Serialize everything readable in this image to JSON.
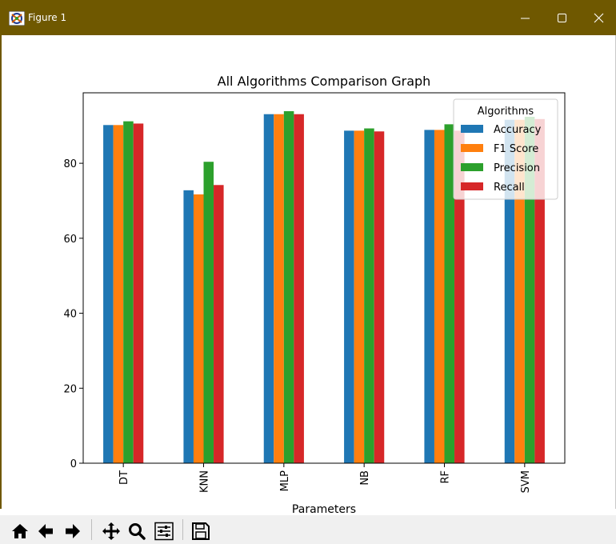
{
  "window": {
    "title": "Figure 1",
    "icons": [
      "app-icon",
      "minimize-icon",
      "maximize-icon",
      "close-icon"
    ]
  },
  "toolbar": {
    "buttons": [
      "home-icon",
      "back-icon",
      "forward-icon",
      "pan-icon",
      "zoom-icon",
      "configure-subplots-icon",
      "save-icon"
    ]
  },
  "chart_data": {
    "type": "bar",
    "title": "All Algorithms Comparison Graph",
    "xlabel": "Parameters",
    "ylabel": "",
    "categories": [
      "DT",
      "KNN",
      "MLP",
      "NB",
      "RF",
      "SVM"
    ],
    "ylim": [
      0,
      98.8
    ],
    "yticks": [
      0,
      20,
      40,
      60,
      80
    ],
    "legend": {
      "title": "Algorithms",
      "placement": "top-right"
    },
    "series": [
      {
        "name": "Accuracy",
        "color": "#1f77b4",
        "values": [
          90.2,
          72.8,
          93.1,
          88.7,
          88.9,
          91.6
        ]
      },
      {
        "name": "F1 Score",
        "color": "#ff7f0e",
        "values": [
          90.2,
          71.7,
          93.1,
          88.7,
          88.9,
          91.6
        ]
      },
      {
        "name": "Precision",
        "color": "#2ca02c",
        "values": [
          91.2,
          80.4,
          93.9,
          89.3,
          90.4,
          92.4
        ]
      },
      {
        "name": "Recall",
        "color": "#d62728",
        "values": [
          90.6,
          74.2,
          93.1,
          88.5,
          88.7,
          91.8
        ]
      }
    ],
    "grid": false
  }
}
